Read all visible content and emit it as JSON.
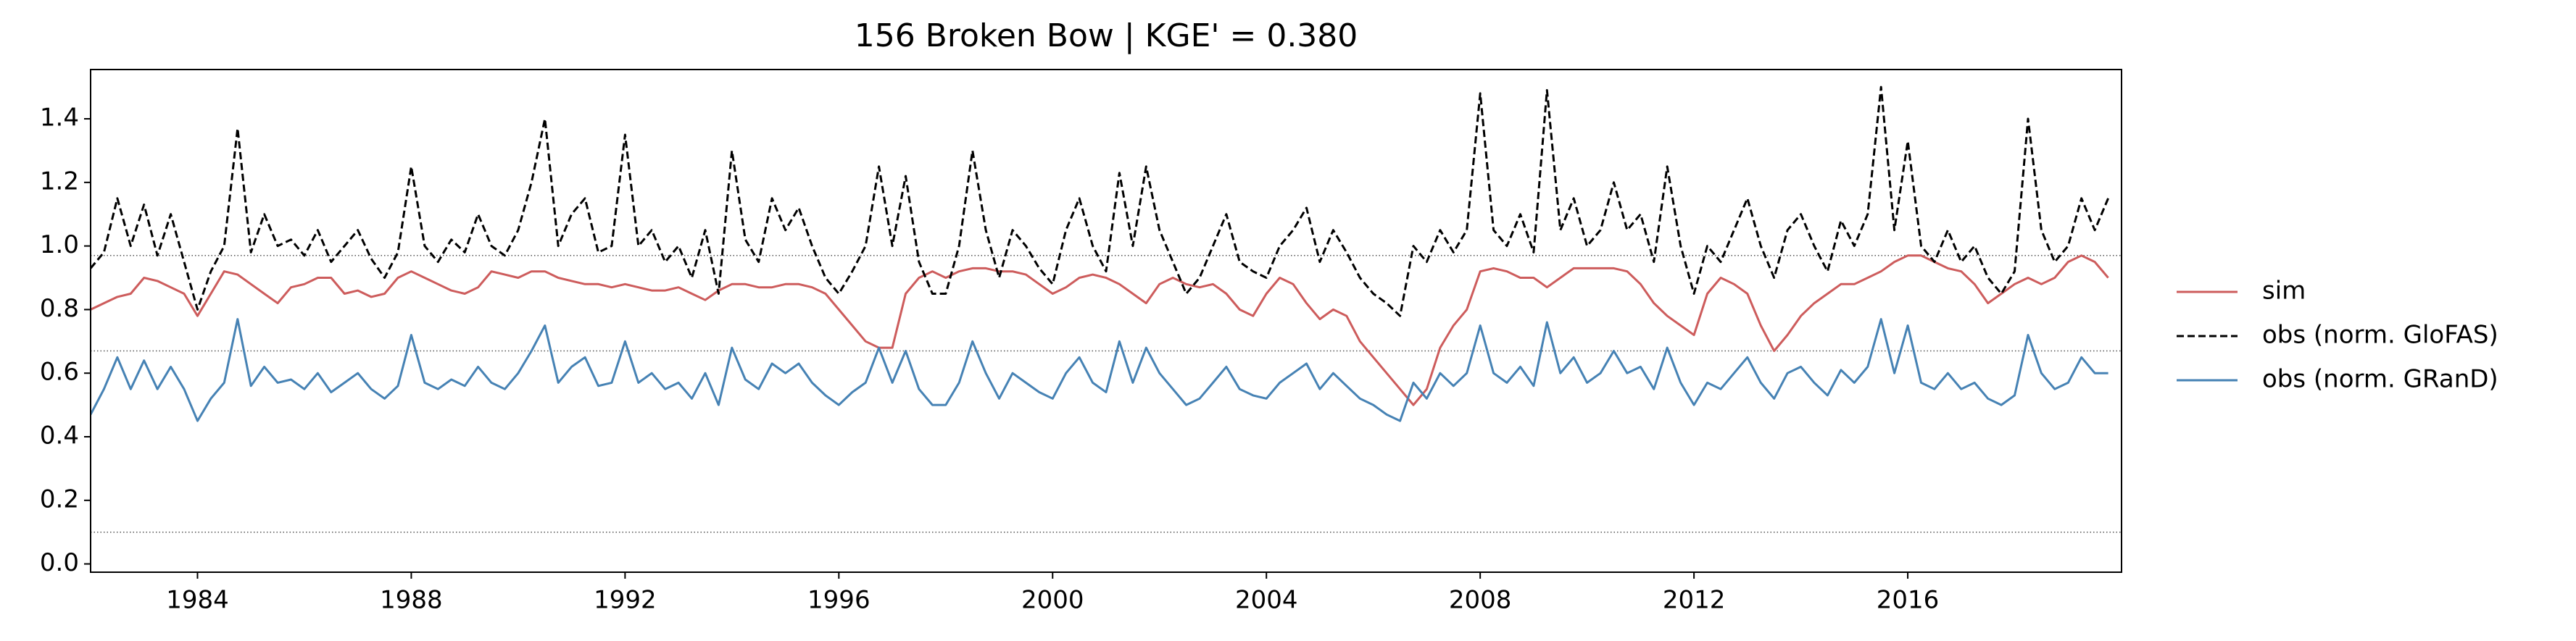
{
  "chart_data": {
    "type": "line",
    "title": "156  Broken Bow | KGE' = 0.380",
    "x": [
      1982,
      1982.25,
      1982.5,
      1982.75,
      1983,
      1983.25,
      1983.5,
      1983.75,
      1984,
      1984.25,
      1984.5,
      1984.75,
      1985,
      1985.25,
      1985.5,
      1985.75,
      1986,
      1986.25,
      1986.5,
      1986.75,
      1987,
      1987.25,
      1987.5,
      1987.75,
      1988,
      1988.25,
      1988.5,
      1988.75,
      1989,
      1989.25,
      1989.5,
      1989.75,
      1990,
      1990.25,
      1990.5,
      1990.75,
      1991,
      1991.25,
      1991.5,
      1991.75,
      1992,
      1992.25,
      1992.5,
      1992.75,
      1993,
      1993.25,
      1993.5,
      1993.75,
      1994,
      1994.25,
      1994.5,
      1994.75,
      1995,
      1995.25,
      1995.5,
      1995.75,
      1996,
      1996.25,
      1996.5,
      1996.75,
      1997,
      1997.25,
      1997.5,
      1997.75,
      1998,
      1998.25,
      1998.5,
      1998.75,
      1999,
      1999.25,
      1999.5,
      1999.75,
      2000,
      2000.25,
      2000.5,
      2000.75,
      2001,
      2001.25,
      2001.5,
      2001.75,
      2002,
      2002.25,
      2002.5,
      2002.75,
      2003,
      2003.25,
      2003.5,
      2003.75,
      2004,
      2004.25,
      2004.5,
      2004.75,
      2005,
      2005.25,
      2005.5,
      2005.75,
      2006,
      2006.25,
      2006.5,
      2006.75,
      2007,
      2007.25,
      2007.5,
      2007.75,
      2008,
      2008.25,
      2008.5,
      2008.75,
      2009,
      2009.25,
      2009.5,
      2009.75,
      2010,
      2010.25,
      2010.5,
      2010.75,
      2011,
      2011.25,
      2011.5,
      2011.75,
      2012,
      2012.25,
      2012.5,
      2012.75,
      2013,
      2013.25,
      2013.5,
      2013.75,
      2014,
      2014.25,
      2014.5,
      2014.75,
      2015,
      2015.25,
      2015.5,
      2015.75,
      2016,
      2016.25,
      2016.5,
      2016.75,
      2017,
      2017.25,
      2017.5,
      2017.75,
      2018,
      2018.25,
      2018.5,
      2018.75,
      2019,
      2019.25,
      2019.5,
      2019.75
    ],
    "series": [
      {
        "name": "sim",
        "color": "#cd5c5c",
        "linestyle": "solid",
        "values": [
          0.8,
          0.82,
          0.84,
          0.85,
          0.9,
          0.89,
          0.87,
          0.85,
          0.78,
          0.85,
          0.92,
          0.91,
          0.88,
          0.85,
          0.82,
          0.87,
          0.88,
          0.9,
          0.9,
          0.85,
          0.86,
          0.84,
          0.85,
          0.9,
          0.92,
          0.9,
          0.88,
          0.86,
          0.85,
          0.87,
          0.92,
          0.91,
          0.9,
          0.92,
          0.92,
          0.9,
          0.89,
          0.88,
          0.88,
          0.87,
          0.88,
          0.87,
          0.86,
          0.86,
          0.87,
          0.85,
          0.83,
          0.86,
          0.88,
          0.88,
          0.87,
          0.87,
          0.88,
          0.88,
          0.87,
          0.85,
          0.8,
          0.75,
          0.7,
          0.68,
          0.68,
          0.85,
          0.9,
          0.92,
          0.9,
          0.92,
          0.93,
          0.93,
          0.92,
          0.92,
          0.91,
          0.88,
          0.85,
          0.87,
          0.9,
          0.91,
          0.9,
          0.88,
          0.85,
          0.82,
          0.88,
          0.9,
          0.88,
          0.87,
          0.88,
          0.85,
          0.8,
          0.78,
          0.85,
          0.9,
          0.88,
          0.82,
          0.77,
          0.8,
          0.78,
          0.7,
          0.65,
          0.6,
          0.55,
          0.5,
          0.55,
          0.68,
          0.75,
          0.8,
          0.92,
          0.93,
          0.92,
          0.9,
          0.9,
          0.87,
          0.9,
          0.93,
          0.93,
          0.93,
          0.93,
          0.92,
          0.88,
          0.82,
          0.78,
          0.75,
          0.72,
          0.85,
          0.9,
          0.88,
          0.85,
          0.75,
          0.67,
          0.72,
          0.78,
          0.82,
          0.85,
          0.88,
          0.88,
          0.9,
          0.92,
          0.95,
          0.97,
          0.97,
          0.95,
          0.93,
          0.92,
          0.88,
          0.82,
          0.85,
          0.88,
          0.9,
          0.88,
          0.9,
          0.95,
          0.97,
          0.95,
          0.9
        ]
      },
      {
        "name": "obs (norm. GloFAS)",
        "color": "#000000",
        "linestyle": "dashed",
        "values": [
          0.93,
          0.98,
          1.15,
          1.0,
          1.13,
          0.97,
          1.1,
          0.95,
          0.8,
          0.92,
          1.0,
          1.37,
          0.98,
          1.1,
          1.0,
          1.02,
          0.97,
          1.05,
          0.95,
          1.0,
          1.05,
          0.96,
          0.9,
          0.98,
          1.25,
          1.0,
          0.95,
          1.02,
          0.98,
          1.1,
          1.0,
          0.97,
          1.05,
          1.2,
          1.4,
          1.0,
          1.1,
          1.15,
          0.98,
          1.0,
          1.35,
          1.0,
          1.05,
          0.95,
          1.0,
          0.9,
          1.05,
          0.85,
          1.3,
          1.02,
          0.95,
          1.15,
          1.05,
          1.12,
          1.0,
          0.9,
          0.85,
          0.92,
          1.0,
          1.25,
          1.0,
          1.22,
          0.95,
          0.85,
          0.85,
          1.0,
          1.3,
          1.05,
          0.9,
          1.05,
          1.0,
          0.93,
          0.88,
          1.05,
          1.15,
          1.0,
          0.92,
          1.23,
          1.0,
          1.25,
          1.05,
          0.95,
          0.85,
          0.9,
          1.0,
          1.1,
          0.95,
          0.92,
          0.9,
          1.0,
          1.05,
          1.12,
          0.95,
          1.05,
          0.98,
          0.9,
          0.85,
          0.82,
          0.78,
          1.0,
          0.95,
          1.05,
          0.98,
          1.05,
          1.48,
          1.05,
          1.0,
          1.1,
          0.98,
          1.49,
          1.05,
          1.15,
          1.0,
          1.05,
          1.2,
          1.05,
          1.1,
          0.95,
          1.25,
          1.0,
          0.85,
          1.0,
          0.95,
          1.05,
          1.15,
          1.0,
          0.9,
          1.05,
          1.1,
          1.0,
          0.92,
          1.08,
          1.0,
          1.1,
          1.5,
          1.05,
          1.33,
          1.0,
          0.95,
          1.05,
          0.95,
          1.0,
          0.9,
          0.85,
          0.92,
          1.4,
          1.05,
          0.95,
          1.0,
          1.15,
          1.05,
          1.15
        ]
      },
      {
        "name": "obs (norm. GRanD)",
        "color": "#4682b4",
        "linestyle": "solid",
        "values": [
          0.47,
          0.55,
          0.65,
          0.55,
          0.64,
          0.55,
          0.62,
          0.55,
          0.45,
          0.52,
          0.57,
          0.77,
          0.56,
          0.62,
          0.57,
          0.58,
          0.55,
          0.6,
          0.54,
          0.57,
          0.6,
          0.55,
          0.52,
          0.56,
          0.72,
          0.57,
          0.55,
          0.58,
          0.56,
          0.62,
          0.57,
          0.55,
          0.6,
          0.67,
          0.75,
          0.57,
          0.62,
          0.65,
          0.56,
          0.57,
          0.7,
          0.57,
          0.6,
          0.55,
          0.57,
          0.52,
          0.6,
          0.5,
          0.68,
          0.58,
          0.55,
          0.63,
          0.6,
          0.63,
          0.57,
          0.53,
          0.5,
          0.54,
          0.57,
          0.68,
          0.57,
          0.67,
          0.55,
          0.5,
          0.5,
          0.57,
          0.7,
          0.6,
          0.52,
          0.6,
          0.57,
          0.54,
          0.52,
          0.6,
          0.65,
          0.57,
          0.54,
          0.7,
          0.57,
          0.68,
          0.6,
          0.55,
          0.5,
          0.52,
          0.57,
          0.62,
          0.55,
          0.53,
          0.52,
          0.57,
          0.6,
          0.63,
          0.55,
          0.6,
          0.56,
          0.52,
          0.5,
          0.47,
          0.45,
          0.57,
          0.52,
          0.6,
          0.56,
          0.6,
          0.75,
          0.6,
          0.57,
          0.62,
          0.56,
          0.76,
          0.6,
          0.65,
          0.57,
          0.6,
          0.67,
          0.6,
          0.62,
          0.55,
          0.68,
          0.57,
          0.5,
          0.57,
          0.55,
          0.6,
          0.65,
          0.57,
          0.52,
          0.6,
          0.62,
          0.57,
          0.53,
          0.61,
          0.57,
          0.62,
          0.77,
          0.6,
          0.75,
          0.57,
          0.55,
          0.6,
          0.55,
          0.57,
          0.52,
          0.5,
          0.53,
          0.72,
          0.6,
          0.55,
          0.57,
          0.65,
          0.6,
          0.6
        ]
      }
    ],
    "hlines": [
      0.97,
      0.67,
      0.1
    ],
    "xlim": [
      1982,
      2020
    ],
    "xticks": [
      1984,
      1988,
      1992,
      1996,
      2000,
      2004,
      2008,
      2012,
      2016
    ],
    "ylim": [
      -0.026,
      1.555
    ],
    "yticks": [
      {
        "value": 0,
        "label": "0.0"
      },
      0.2,
      0.4,
      0.6,
      0.8,
      {
        "value": 1,
        "label": "1.0"
      },
      1.2,
      1.4
    ],
    "legend": "right"
  }
}
